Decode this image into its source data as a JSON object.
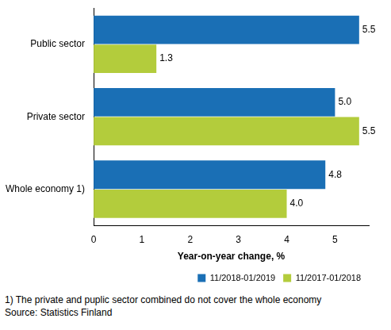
{
  "chart_data": {
    "type": "bar",
    "orientation": "horizontal",
    "categories": [
      "Public sector",
      "Private sector",
      "Whole economy 1)"
    ],
    "series": [
      {
        "name": "11/2018-01/2019",
        "color": "#1a6fb5",
        "values": [
          5.5,
          5.0,
          4.8
        ],
        "value_labels": [
          "5.5",
          "5.0",
          "4.8"
        ]
      },
      {
        "name": "11/2017-01/2018",
        "color": "#b3cc3c",
        "values": [
          1.3,
          5.5,
          4.0
        ],
        "value_labels": [
          "1.3",
          "5.5",
          "4.0"
        ]
      }
    ],
    "x_label": "Year-on-year change, %",
    "xlim": [
      0,
      5.7
    ],
    "xticks": [
      0,
      1,
      2,
      3,
      4,
      5
    ],
    "grid": false,
    "legend": "bottom-right",
    "data_labels": true,
    "footnote": "1) The private and puplic sector combined do not cover the whole economy",
    "source": "Source: Statistics Finland"
  }
}
